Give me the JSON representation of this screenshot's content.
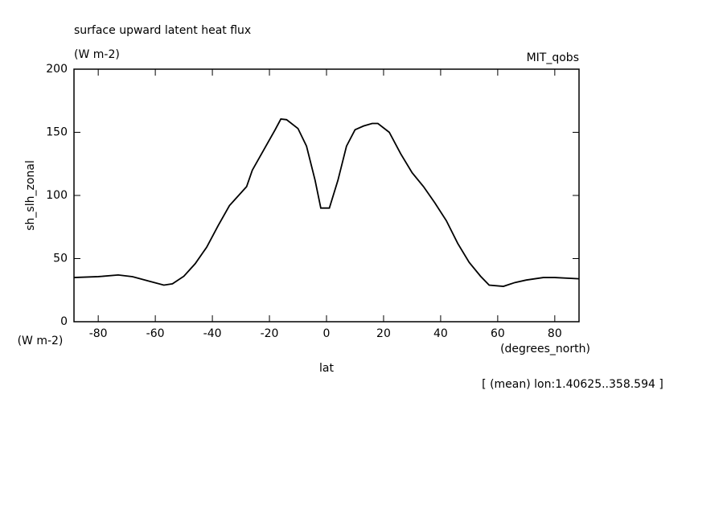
{
  "chart_data": {
    "type": "line",
    "title": "surface upward latent heat flux",
    "subtitle": "(W m-2)",
    "source": "MIT_qobs",
    "ylabel": "sh_slh_zonal",
    "y_units": "(W m-2)",
    "x_units": "(degrees_north)",
    "xlabel": "lat",
    "footnote": "[ (mean) lon:1.40625..358.594 ]",
    "x": [
      -88.5,
      -80,
      -73,
      -68,
      -62,
      -57,
      -54,
      -50,
      -46,
      -42,
      -38,
      -34,
      -28,
      -26,
      -22,
      -18,
      -16,
      -14,
      -10,
      -7,
      -4,
      -2,
      1,
      4,
      7,
      10,
      13,
      16,
      18,
      22,
      26,
      30,
      34,
      38,
      42,
      46,
      50,
      54,
      57,
      62,
      66,
      70,
      76,
      80,
      88.5
    ],
    "series": [
      {
        "name": "sh_slh_zonal",
        "color": "#000000",
        "values": [
          35,
          35.7,
          37,
          35.7,
          32,
          29,
          30,
          36,
          46,
          59,
          76,
          92,
          107,
          120,
          136,
          152,
          160.5,
          160,
          153,
          139,
          112,
          90,
          90,
          112,
          139,
          152,
          155,
          157,
          157,
          150,
          133,
          118,
          107,
          94,
          80,
          62,
          47,
          36,
          29,
          28,
          31,
          33,
          35,
          35,
          34
        ]
      }
    ],
    "xlim": [
      -88.5,
      88.5
    ],
    "xticks": [
      -80,
      -60,
      -40,
      -20,
      0,
      20,
      40,
      60,
      80
    ],
    "ylim": [
      0,
      200
    ],
    "yticks": [
      0,
      50,
      100,
      150,
      200
    ],
    "grid": false
  }
}
